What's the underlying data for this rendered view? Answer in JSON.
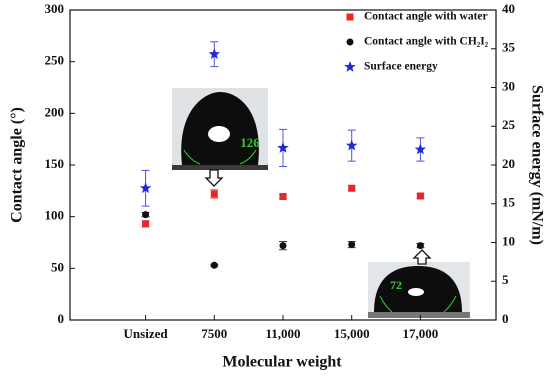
{
  "chart_data": {
    "type": "scatter",
    "xlabel": "Molecular weight",
    "ylabel": "Contact angle (°)",
    "y2label": "Surface energy (mN/m)",
    "categories": [
      "Unsized",
      "7500",
      "11,000",
      "15,000",
      "17,000"
    ],
    "series": [
      {
        "name": "Contact angle with water",
        "color": "#e8262a",
        "marker": "square",
        "values": [
          93,
          122,
          119.5,
          127.5,
          120
        ],
        "errors": [
          3,
          4,
          2,
          2,
          2
        ]
      },
      {
        "name": "Contact angle with CH₂I₂",
        "color": "#111111",
        "marker": "circle",
        "values": [
          102,
          53,
          72,
          73,
          72
        ],
        "errors": [
          2,
          1,
          4,
          3,
          2
        ]
      },
      {
        "name": "Surface energy",
        "color": "#1f2bd6",
        "marker": "star",
        "axis": "y2",
        "values": [
          17,
          34.3,
          22.2,
          22.5,
          22
        ],
        "errors": [
          2.3,
          1.6,
          2.4,
          2,
          1.5
        ]
      }
    ],
    "ylim": [
      0,
      300
    ],
    "yticks": [
      0,
      50,
      100,
      150,
      200,
      250,
      300
    ],
    "y2lim": [
      0,
      40
    ],
    "y2ticks": [
      0,
      5,
      10,
      15,
      20,
      25,
      30,
      35,
      40
    ],
    "annotations": [
      "126",
      "72"
    ]
  }
}
